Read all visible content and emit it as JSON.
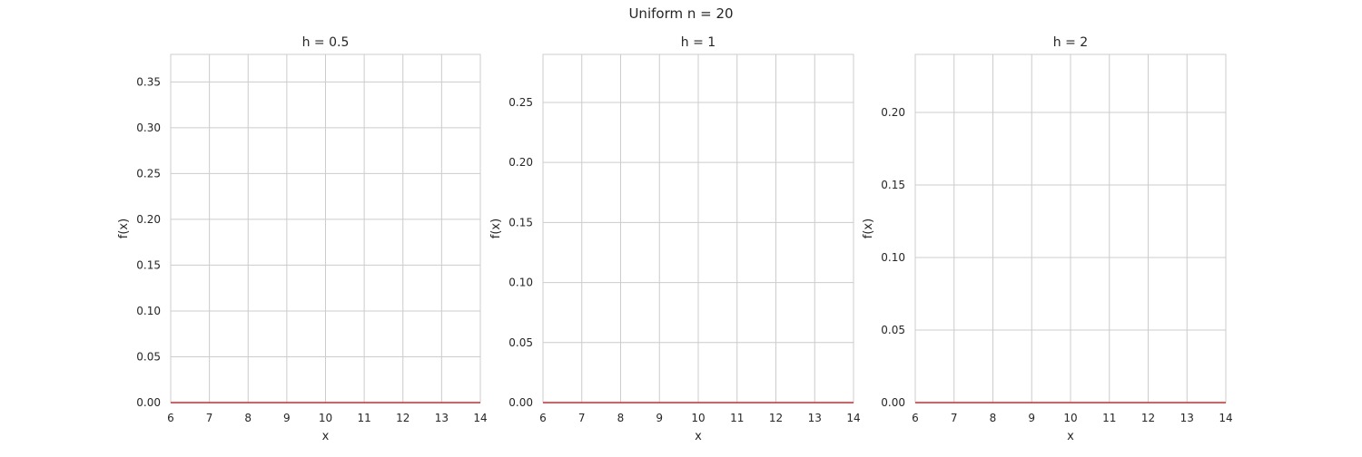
{
  "figure": {
    "suptitle": "Uniform n = 20"
  },
  "chart_data": [
    {
      "type": "line",
      "title": "h = 0.5",
      "xlabel": "x",
      "ylabel": "f(x)",
      "xlim": [
        6,
        14
      ],
      "ylim": [
        0,
        0.38
      ],
      "xticks": [
        6,
        7,
        8,
        9,
        10,
        11,
        12,
        13,
        14
      ],
      "yticks": [
        0.0,
        0.05,
        0.1,
        0.15,
        0.2,
        0.25,
        0.3,
        0.35
      ],
      "grid": true,
      "series": [
        {
          "x": [
            6,
            14
          ],
          "y": [
            0,
            0
          ],
          "color": "#d62728"
        }
      ]
    },
    {
      "type": "line",
      "title": "h = 1",
      "xlabel": "x",
      "ylabel": "f(x)",
      "xlim": [
        6,
        14
      ],
      "ylim": [
        0,
        0.29
      ],
      "xticks": [
        6,
        7,
        8,
        9,
        10,
        11,
        12,
        13,
        14
      ],
      "yticks": [
        0.0,
        0.05,
        0.1,
        0.15,
        0.2,
        0.25
      ],
      "grid": true,
      "series": [
        {
          "x": [
            6,
            14
          ],
          "y": [
            0,
            0
          ],
          "color": "#d62728"
        }
      ]
    },
    {
      "type": "line",
      "title": "h = 2",
      "xlabel": "x",
      "ylabel": "f(x)",
      "xlim": [
        6,
        14
      ],
      "ylim": [
        0,
        0.24
      ],
      "xticks": [
        6,
        7,
        8,
        9,
        10,
        11,
        12,
        13,
        14
      ],
      "yticks": [
        0.0,
        0.05,
        0.1,
        0.15,
        0.2
      ],
      "grid": true,
      "series": [
        {
          "x": [
            6,
            14
          ],
          "y": [
            0,
            0
          ],
          "color": "#d62728"
        }
      ]
    }
  ]
}
